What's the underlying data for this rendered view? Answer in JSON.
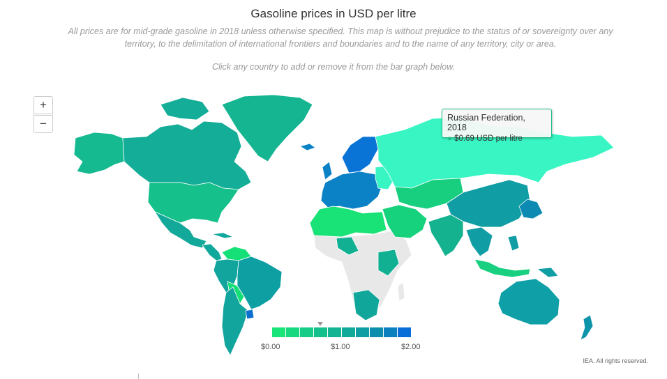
{
  "title": "Gasoline prices in USD per litre",
  "subtitle": "All prices are for mid-grade gasoline in 2018 unless otherwise specified. This map is without prejudice to the status of or sovereignty over any territory, to the delimitation of international frontiers and boundaries and to the name of any territory, city or area.",
  "hint": "Click any country to add or remove it from the bar graph below.",
  "zoom": {
    "in_label": "+",
    "out_label": "−"
  },
  "tooltip": {
    "title": "Russian Federation, 2018",
    "value_text": "$0.69 USD per litre",
    "bullet": "●"
  },
  "legend": {
    "ticks": [
      "$0.00",
      "$1.00",
      "$2.00"
    ],
    "min": 0,
    "max": 2,
    "marker_value": 0.69,
    "colors": [
      "#19e47a",
      "#18d87f",
      "#16cc86",
      "#14c08c",
      "#12b493",
      "#10a99a",
      "#0e9da3",
      "#0d8ead",
      "#0b80bf",
      "#0a6ed9"
    ]
  },
  "credit": "IEA. All rights reserved.",
  "map_colors": {
    "no_data": "#e8e8e8",
    "ocean_bg": "#ffffff",
    "canada": "#14ad98",
    "alaska": "#16ba90",
    "usa": "#16c08a",
    "greenland": "#15b592",
    "mexico": "#12a99a",
    "central_america": "#10a79c",
    "south_america": "#12a59d",
    "venezuela": "#15e077",
    "brazil": "#0e9fa3",
    "uruguay": "#0b6fd0",
    "europe_north": "#0a74d6",
    "europe": "#0b82c6",
    "russia": "#39f5c4",
    "central_asia": "#18cf80",
    "china": "#109da3",
    "india": "#14b28f",
    "middle_east": "#17d27c",
    "north_africa": "#19e277",
    "africa_mid": "#12b093",
    "southern_africa": "#10a79a",
    "se_asia": "#18d07f",
    "japan": "#0d8ab2",
    "australia": "#0f9fa6",
    "nz": "#0d93aa"
  }
}
